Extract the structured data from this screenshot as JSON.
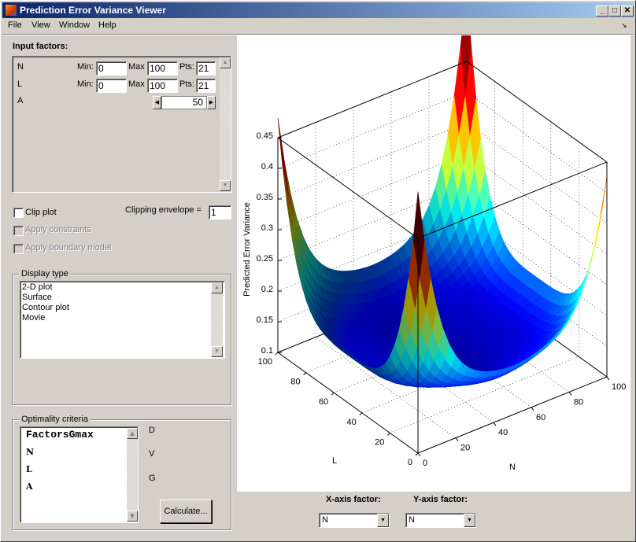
{
  "window": {
    "title": "Prediction Error Variance Viewer",
    "minimize": "_",
    "maximize": "□",
    "close": "✕"
  },
  "menu": [
    "File",
    "View",
    "Window",
    "Help"
  ],
  "menu_arrow": "↘",
  "input_factors": {
    "title": "Input factors:",
    "rows": [
      {
        "name": "N",
        "min_label": "Min:",
        "min": "0",
        "max_label": "Max",
        "max": "100",
        "pts_label": "Pts:",
        "pts": "21"
      },
      {
        "name": "L",
        "min_label": "Min:",
        "min": "0",
        "max_label": "Max",
        "max": "100",
        "pts_label": "Pts:",
        "pts": "21"
      }
    ],
    "fixed": {
      "name": "A",
      "value": "50"
    }
  },
  "clip_plot": {
    "label": "Clip plot",
    "checked": false
  },
  "clipping_envelope": {
    "label": "Clipping envelope =",
    "value": "1"
  },
  "apply_constraints": {
    "label": "Apply constraints",
    "enabled": false
  },
  "apply_boundary": {
    "label": "Apply boundary model",
    "enabled": false
  },
  "display_type": {
    "title": "Display type",
    "options": [
      "2-D plot",
      "Surface",
      "Contour plot",
      "Movie"
    ]
  },
  "optimality": {
    "title": "Optimality criteria",
    "list": [
      "FactorsGmax",
      "N",
      "L",
      "A"
    ],
    "labels": [
      "D",
      "V",
      "G"
    ],
    "calculate": "Calculate..."
  },
  "plot": {
    "zlabel": "Predicted Error Variance",
    "xlabel": "N",
    "ylabel": "L",
    "zticks": [
      "0.1",
      "0.15",
      "0.2",
      "0.25",
      "0.3",
      "0.35",
      "0.4",
      "0.45"
    ],
    "nticks": [
      "0",
      "20",
      "40",
      "60",
      "80",
      "100"
    ],
    "lticks": [
      "0",
      "20",
      "40",
      "60",
      "80",
      "100"
    ],
    "colormap": "jet"
  },
  "xaxis_factor": {
    "label": "X-axis factor:",
    "value": "N"
  },
  "yaxis_factor": {
    "label": "Y-axis factor:",
    "value": "N"
  }
}
